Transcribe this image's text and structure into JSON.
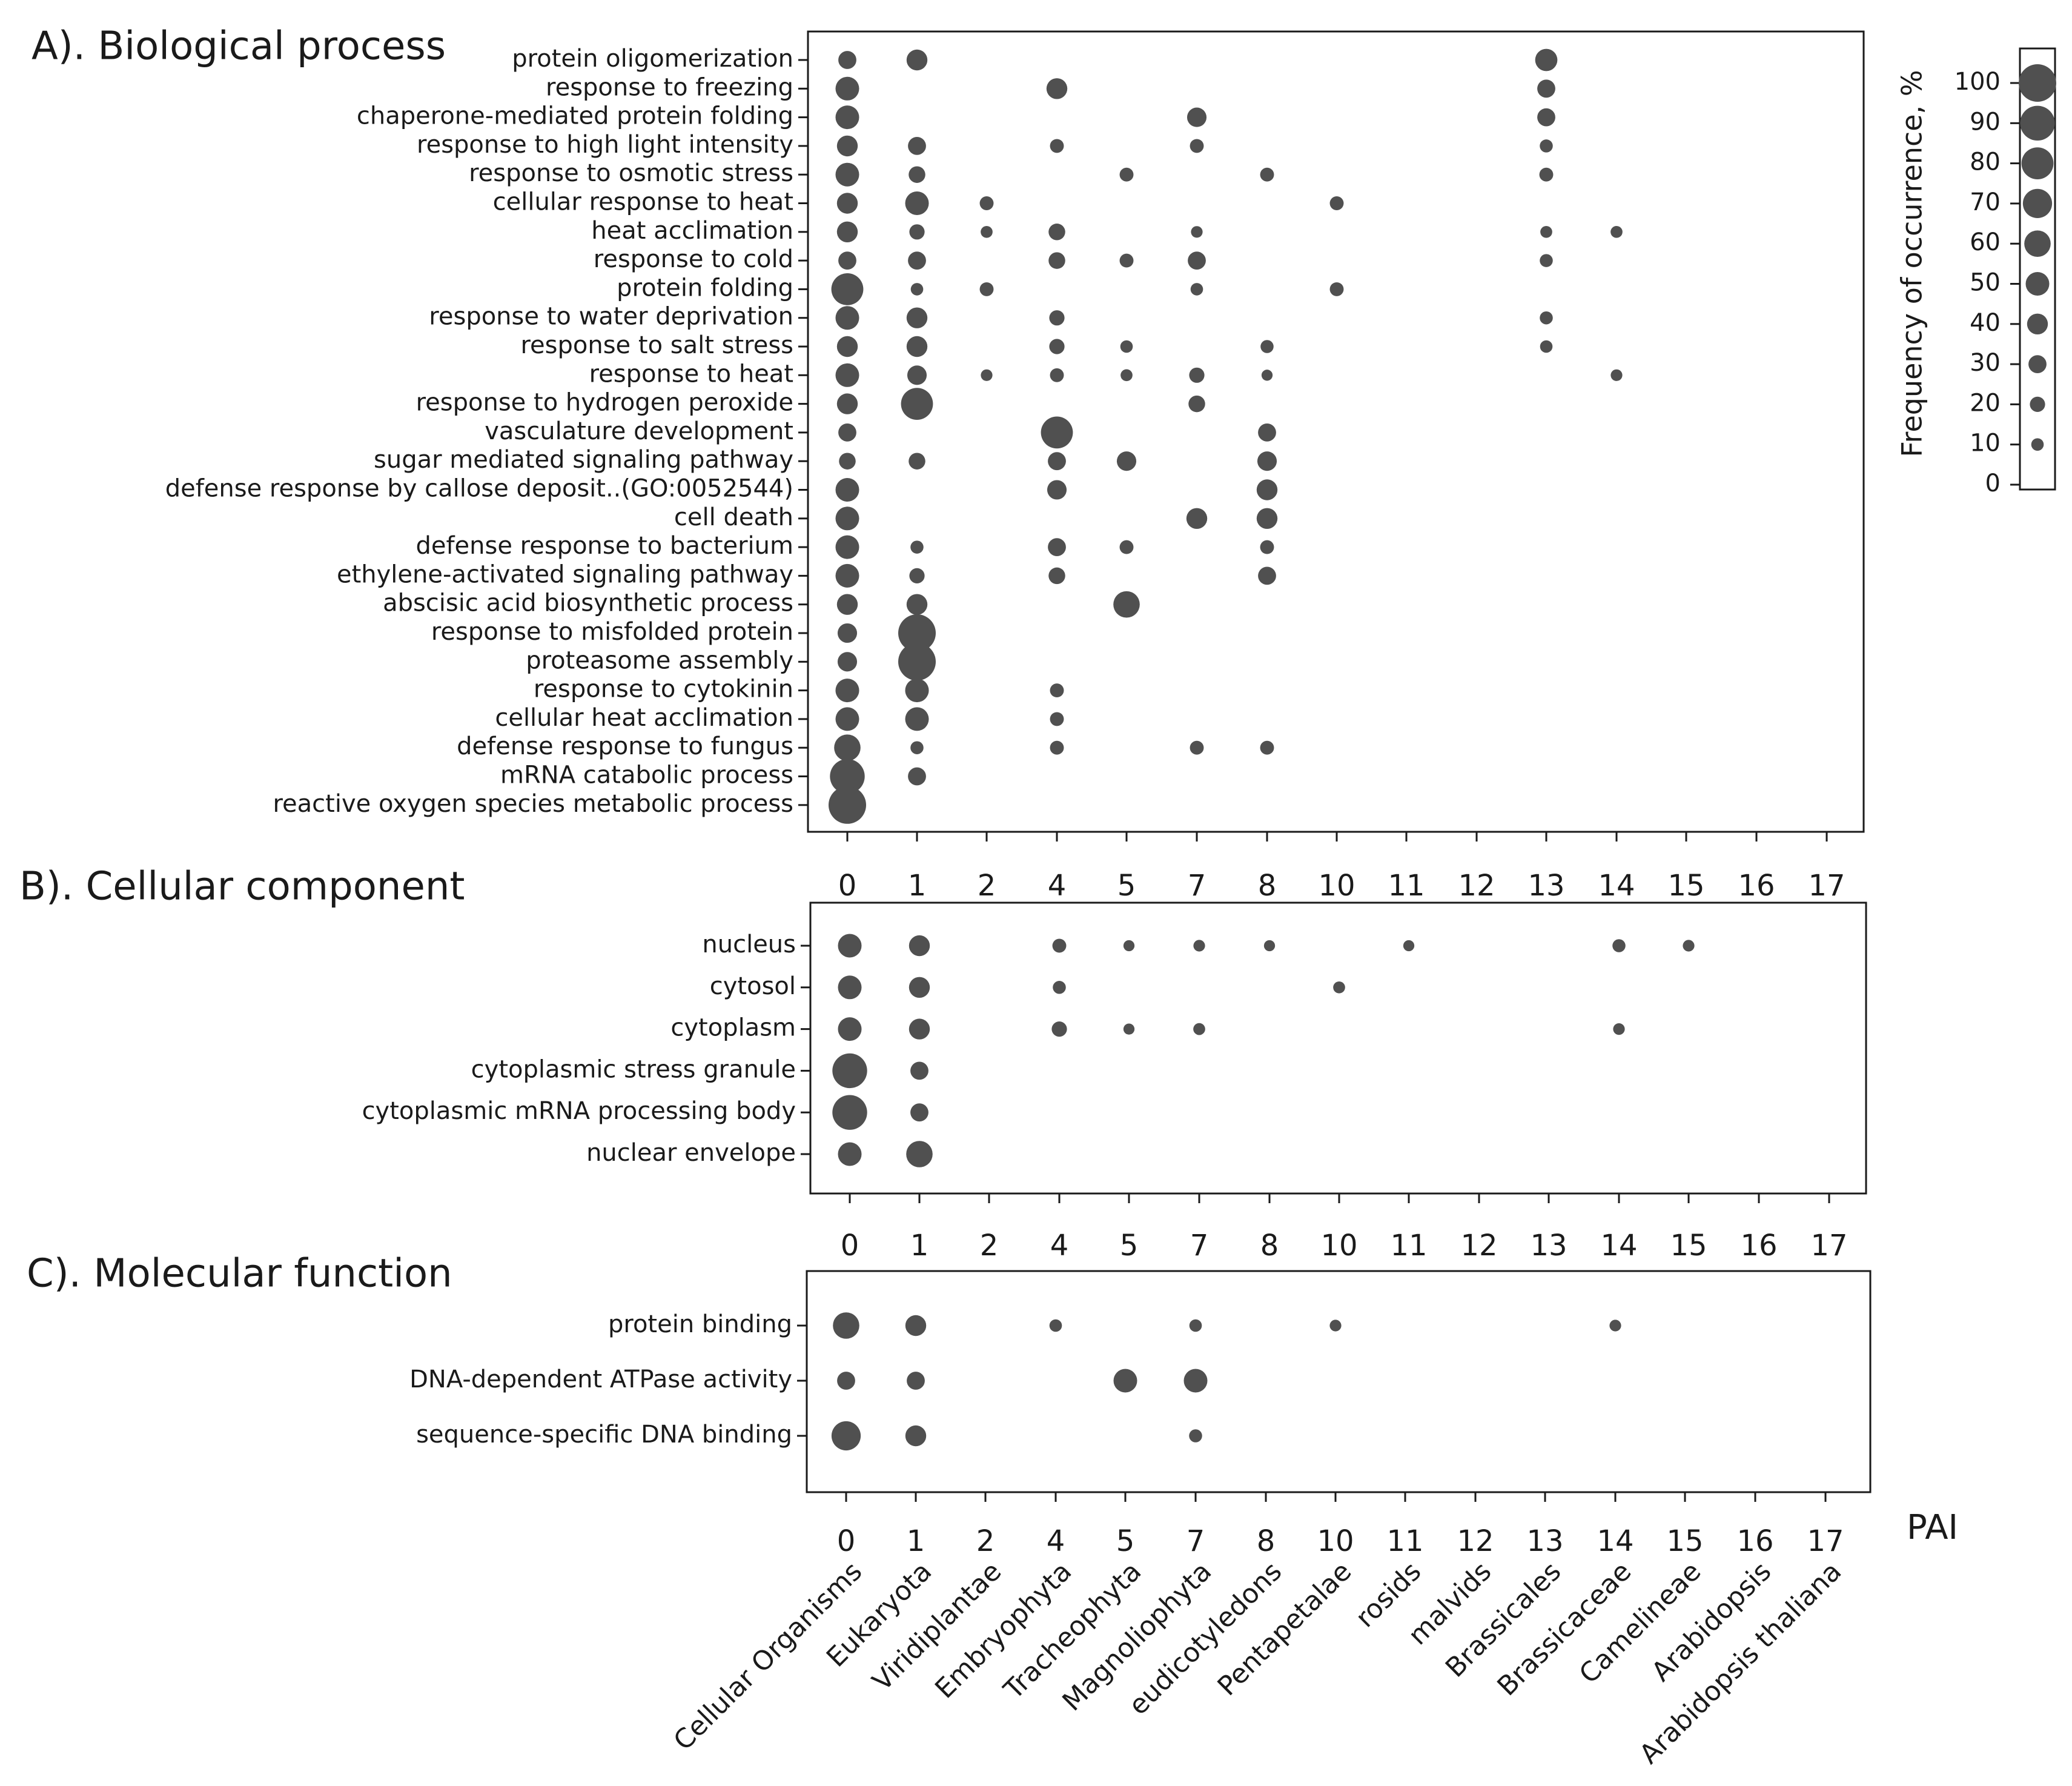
{
  "chart_data": [
    {
      "type": "scatter",
      "panel_title": "A). Biological process",
      "x_ticks": [
        "0",
        "1",
        "2",
        "4",
        "5",
        "7",
        "8",
        "10",
        "11",
        "12",
        "13",
        "14",
        "15",
        "16",
        "17"
      ],
      "rows": [
        {
          "label": "protein oligomerization",
          "points": [
            {
              "x": "0",
              "v": 30
            },
            {
              "x": "1",
              "v": 40
            },
            {
              "x": "13",
              "v": 45
            }
          ]
        },
        {
          "label": "response to freezing",
          "points": [
            {
              "x": "0",
              "v": 50
            },
            {
              "x": "4",
              "v": 40
            },
            {
              "x": "13",
              "v": 30
            }
          ]
        },
        {
          "label": "chaperone-mediated protein folding",
          "points": [
            {
              "x": "0",
              "v": 50
            },
            {
              "x": "7",
              "v": 35
            },
            {
              "x": "13",
              "v": 30
            }
          ]
        },
        {
          "label": "response to high light intensity",
          "points": [
            {
              "x": "0",
              "v": 40
            },
            {
              "x": "1",
              "v": 30
            },
            {
              "x": "4",
              "v": 15
            },
            {
              "x": "7",
              "v": 15
            },
            {
              "x": "13",
              "v": 12
            }
          ]
        },
        {
          "label": "response to osmotic stress",
          "points": [
            {
              "x": "0",
              "v": 50
            },
            {
              "x": "1",
              "v": 25
            },
            {
              "x": "5",
              "v": 15
            },
            {
              "x": "8",
              "v": 15
            },
            {
              "x": "13",
              "v": 15
            }
          ]
        },
        {
          "label": "cellular response to heat",
          "points": [
            {
              "x": "0",
              "v": 40
            },
            {
              "x": "1",
              "v": 50
            },
            {
              "x": "2",
              "v": 15
            },
            {
              "x": "10",
              "v": 15
            }
          ]
        },
        {
          "label": "heat acclimation",
          "points": [
            {
              "x": "0",
              "v": 40
            },
            {
              "x": "1",
              "v": 20
            },
            {
              "x": "2",
              "v": 8
            },
            {
              "x": "4",
              "v": 25
            },
            {
              "x": "7",
              "v": 7
            },
            {
              "x": "13",
              "v": 8
            },
            {
              "x": "14",
              "v": 8
            }
          ]
        },
        {
          "label": "response to cold",
          "points": [
            {
              "x": "0",
              "v": 30
            },
            {
              "x": "1",
              "v": 30
            },
            {
              "x": "4",
              "v": 25
            },
            {
              "x": "5",
              "v": 15
            },
            {
              "x": "7",
              "v": 30
            },
            {
              "x": "13",
              "v": 12
            }
          ]
        },
        {
          "label": "protein folding",
          "points": [
            {
              "x": "0",
              "v": 80
            },
            {
              "x": "1",
              "v": 10
            },
            {
              "x": "2",
              "v": 15
            },
            {
              "x": "7",
              "v": 10
            },
            {
              "x": "10",
              "v": 15
            }
          ]
        },
        {
          "label": "response to water deprivation",
          "points": [
            {
              "x": "0",
              "v": 50
            },
            {
              "x": "1",
              "v": 40
            },
            {
              "x": "4",
              "v": 20
            },
            {
              "x": "13",
              "v": 12
            }
          ]
        },
        {
          "label": "response to salt stress",
          "points": [
            {
              "x": "0",
              "v": 40
            },
            {
              "x": "1",
              "v": 40
            },
            {
              "x": "4",
              "v": 20
            },
            {
              "x": "5",
              "v": 10
            },
            {
              "x": "8",
              "v": 12
            },
            {
              "x": "13",
              "v": 10
            }
          ]
        },
        {
          "label": "response to heat",
          "points": [
            {
              "x": "0",
              "v": 50
            },
            {
              "x": "1",
              "v": 35
            },
            {
              "x": "2",
              "v": 7
            },
            {
              "x": "4",
              "v": 15
            },
            {
              "x": "5",
              "v": 8
            },
            {
              "x": "7",
              "v": 20
            },
            {
              "x": "8",
              "v": 5
            },
            {
              "x": "14",
              "v": 7
            }
          ]
        },
        {
          "label": "response to hydrogen peroxide",
          "points": [
            {
              "x": "0",
              "v": 40
            },
            {
              "x": "1",
              "v": 80
            },
            {
              "x": "7",
              "v": 25
            }
          ]
        },
        {
          "label": "vasculature development",
          "points": [
            {
              "x": "0",
              "v": 30
            },
            {
              "x": "4",
              "v": 80
            },
            {
              "x": "8",
              "v": 30
            }
          ]
        },
        {
          "label": "sugar mediated signaling pathway",
          "points": [
            {
              "x": "0",
              "v": 25
            },
            {
              "x": "1",
              "v": 25
            },
            {
              "x": "4",
              "v": 30
            },
            {
              "x": "5",
              "v": 35
            },
            {
              "x": "8",
              "v": 35
            }
          ]
        },
        {
          "label": "defense response by callose deposit..(GO:0052544)",
          "points": [
            {
              "x": "0",
              "v": 50
            },
            {
              "x": "4",
              "v": 35
            },
            {
              "x": "8",
              "v": 40
            }
          ]
        },
        {
          "label": "cell death",
          "points": [
            {
              "x": "0",
              "v": 50
            },
            {
              "x": "7",
              "v": 40
            },
            {
              "x": "8",
              "v": 40
            }
          ]
        },
        {
          "label": "defense response to bacterium",
          "points": [
            {
              "x": "0",
              "v": 50
            },
            {
              "x": "1",
              "v": 12
            },
            {
              "x": "4",
              "v": 30
            },
            {
              "x": "5",
              "v": 15
            },
            {
              "x": "8",
              "v": 15
            }
          ]
        },
        {
          "label": "ethylene-activated signaling pathway",
          "points": [
            {
              "x": "0",
              "v": 50
            },
            {
              "x": "1",
              "v": 20
            },
            {
              "x": "4",
              "v": 25
            },
            {
              "x": "8",
              "v": 30
            }
          ]
        },
        {
          "label": "abscisic acid biosynthetic process",
          "points": [
            {
              "x": "0",
              "v": 40
            },
            {
              "x": "1",
              "v": 40
            },
            {
              "x": "5",
              "v": 60
            }
          ]
        },
        {
          "label": "response to misfolded protein",
          "points": [
            {
              "x": "0",
              "v": 35
            },
            {
              "x": "1",
              "v": 100
            }
          ]
        },
        {
          "label": "proteasome assembly",
          "points": [
            {
              "x": "0",
              "v": 35
            },
            {
              "x": "1",
              "v": 100
            }
          ]
        },
        {
          "label": "response to cytokinin",
          "points": [
            {
              "x": "0",
              "v": 50
            },
            {
              "x": "1",
              "v": 50
            },
            {
              "x": "4",
              "v": 15
            }
          ]
        },
        {
          "label": "cellular heat acclimation",
          "points": [
            {
              "x": "0",
              "v": 50
            },
            {
              "x": "1",
              "v": 50
            },
            {
              "x": "4",
              "v": 15
            }
          ]
        },
        {
          "label": "defense response to fungus",
          "points": [
            {
              "x": "0",
              "v": 60
            },
            {
              "x": "1",
              "v": 12
            },
            {
              "x": "4",
              "v": 15
            },
            {
              "x": "7",
              "v": 15
            },
            {
              "x": "8",
              "v": 15
            }
          ]
        },
        {
          "label": "mRNA catabolic process",
          "points": [
            {
              "x": "0",
              "v": 90
            },
            {
              "x": "1",
              "v": 30
            }
          ]
        },
        {
          "label": "reactive oxygen species metabolic process",
          "points": [
            {
              "x": "0",
              "v": 100
            }
          ]
        }
      ]
    },
    {
      "type": "scatter",
      "panel_title": "B). Cellular component",
      "x_ticks": [
        "0",
        "1",
        "2",
        "4",
        "5",
        "7",
        "8",
        "10",
        "11",
        "12",
        "13",
        "14",
        "15",
        "16",
        "17"
      ],
      "rows": [
        {
          "label": "nucleus",
          "points": [
            {
              "x": "0",
              "v": 50
            },
            {
              "x": "1",
              "v": 40
            },
            {
              "x": "4",
              "v": 15
            },
            {
              "x": "5",
              "v": 5
            },
            {
              "x": "7",
              "v": 7
            },
            {
              "x": "8",
              "v": 5
            },
            {
              "x": "11",
              "v": 5
            },
            {
              "x": "14",
              "v": 12
            },
            {
              "x": "15",
              "v": 7
            }
          ]
        },
        {
          "label": "cytosol",
          "points": [
            {
              "x": "0",
              "v": 50
            },
            {
              "x": "1",
              "v": 40
            },
            {
              "x": "4",
              "v": 12
            },
            {
              "x": "10",
              "v": 8
            }
          ]
        },
        {
          "label": "cytoplasm",
          "points": [
            {
              "x": "0",
              "v": 50
            },
            {
              "x": "1",
              "v": 40
            },
            {
              "x": "4",
              "v": 20
            },
            {
              "x": "5",
              "v": 5
            },
            {
              "x": "7",
              "v": 8
            },
            {
              "x": "14",
              "v": 7
            }
          ]
        },
        {
          "label": "cytoplasmic stress granule",
          "points": [
            {
              "x": "0",
              "v": 90
            },
            {
              "x": "1",
              "v": 30
            }
          ]
        },
        {
          "label": "cytoplasmic mRNA processing body",
          "points": [
            {
              "x": "0",
              "v": 90
            },
            {
              "x": "1",
              "v": 30
            }
          ]
        },
        {
          "label": "nuclear envelope",
          "points": [
            {
              "x": "0",
              "v": 50
            },
            {
              "x": "1",
              "v": 60
            }
          ]
        }
      ]
    },
    {
      "type": "scatter",
      "panel_title": "C). Molecular function",
      "x_ticks": [
        "0",
        "1",
        "2",
        "4",
        "5",
        "7",
        "8",
        "10",
        "11",
        "12",
        "13",
        "14",
        "15",
        "16",
        "17"
      ],
      "x_category_labels": [
        "Cellular Organisms",
        "Eukaryota",
        "Viridiplantae",
        "Embryophyta",
        "Tracheophyta",
        "Magnoliophyta",
        "eudicotyledons",
        "Pentapetalae",
        "rosids",
        "malvids",
        "Brassicales",
        "Brassicaceae",
        "Camelineae",
        "Arabidopsis",
        "Arabidopsis thaliana"
      ],
      "xlabel": "PAI",
      "rows": [
        {
          "label": "protein binding",
          "points": [
            {
              "x": "0",
              "v": 60
            },
            {
              "x": "1",
              "v": 40
            },
            {
              "x": "4",
              "v": 10
            },
            {
              "x": "7",
              "v": 10
            },
            {
              "x": "10",
              "v": 7
            },
            {
              "x": "14",
              "v": 7
            }
          ]
        },
        {
          "label": "DNA-dependent ATPase activity",
          "points": [
            {
              "x": "0",
              "v": 30
            },
            {
              "x": "1",
              "v": 30
            },
            {
              "x": "5",
              "v": 50
            },
            {
              "x": "7",
              "v": 50
            }
          ]
        },
        {
          "label": "sequence-specific DNA binding",
          "points": [
            {
              "x": "0",
              "v": 70
            },
            {
              "x": "1",
              "v": 40
            },
            {
              "x": "7",
              "v": 12
            }
          ]
        }
      ]
    }
  ],
  "legend": {
    "title": "Frequency of occurrence, %",
    "values": [
      100,
      90,
      80,
      70,
      60,
      50,
      40,
      30,
      20,
      10,
      0
    ]
  },
  "colors": {
    "dot": "#505050",
    "axis": "#1a1a1a"
  }
}
